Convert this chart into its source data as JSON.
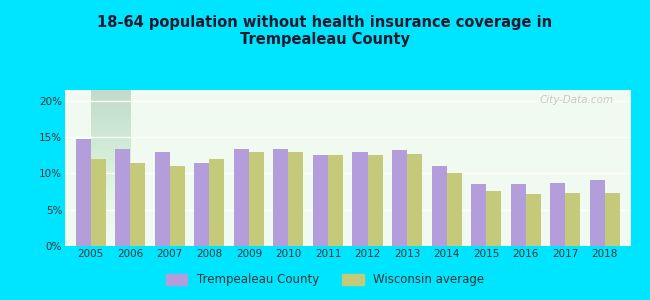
{
  "title": "18-64 population without health insurance coverage in\nTrempealeau County",
  "years": [
    2005,
    2006,
    2007,
    2008,
    2009,
    2010,
    2011,
    2012,
    2013,
    2014,
    2015,
    2016,
    2017,
    2018
  ],
  "trempealeau": [
    14.7,
    13.3,
    12.9,
    11.5,
    13.3,
    13.4,
    12.5,
    12.9,
    13.2,
    11.0,
    8.5,
    8.5,
    8.7,
    9.1
  ],
  "wisconsin": [
    12.0,
    11.4,
    11.0,
    12.0,
    12.9,
    12.9,
    12.5,
    12.5,
    12.7,
    10.1,
    7.6,
    7.2,
    7.3,
    7.3
  ],
  "trempealeau_color": "#b39ddb",
  "wisconsin_color": "#c5c97a",
  "background_outer": "#00e5ff",
  "background_plot_top": "#d4edda",
  "background_plot_bottom": "#f0faf0",
  "title_color": "#1a1a2e",
  "ylabel_ticks": [
    "0%",
    "5%",
    "10%",
    "15%",
    "20%"
  ],
  "yticks": [
    0,
    5,
    10,
    15,
    20
  ],
  "ylim": [
    0,
    21.5
  ],
  "bar_width": 0.38,
  "legend_trempealeau": "Trempealeau County",
  "legend_wisconsin": "Wisconsin average"
}
